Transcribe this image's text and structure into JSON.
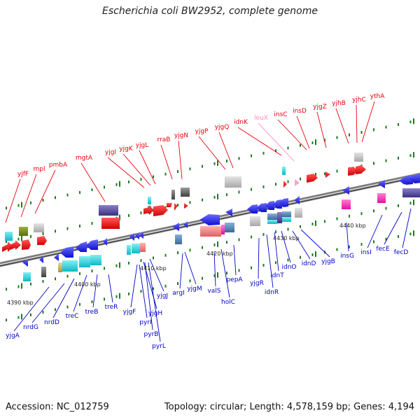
{
  "title": "Escherichia coli BW2952, complete genome",
  "footer": {
    "accession": "Accession: NC_012759",
    "summary": "Topology: circular; Length: 4,578,159 bp; Genes: 4,194"
  },
  "colors": {
    "forward_label": "#e8000b",
    "reverse_label": "#0000c8",
    "rna_label": "#ff88c0",
    "backbone": "#777777",
    "tick": "#1f7a1f"
  },
  "scale": [
    {
      "label": "4390 kbp"
    },
    {
      "label": "4400 kbp"
    },
    {
      "label": "4410 kbp"
    },
    {
      "label": "4420 kbp"
    },
    {
      "label": "4430 kbp"
    },
    {
      "label": "4440 kbp"
    }
  ],
  "genes_forward": [
    {
      "name": "yjfF"
    },
    {
      "name": "mpl"
    },
    {
      "name": "pmbA"
    },
    {
      "name": "mgtA"
    },
    {
      "name": "yjgI"
    },
    {
      "name": "yjgK"
    },
    {
      "name": "yjgL"
    },
    {
      "name": "rraB"
    },
    {
      "name": "yjgN"
    },
    {
      "name": "yjgP"
    },
    {
      "name": "yjgQ"
    },
    {
      "name": "idnK"
    },
    {
      "name": "leuX"
    },
    {
      "name": "insC"
    },
    {
      "name": "insD"
    },
    {
      "name": "yjgZ"
    },
    {
      "name": "yjhB"
    },
    {
      "name": "yjhC"
    },
    {
      "name": "ythA"
    }
  ],
  "genes_reverse": [
    {
      "name": "yjgA"
    },
    {
      "name": "nrdG"
    },
    {
      "name": "nrdD"
    },
    {
      "name": "treC"
    },
    {
      "name": "treB"
    },
    {
      "name": "treR"
    },
    {
      "name": "yjgF"
    },
    {
      "name": "pyrI"
    },
    {
      "name": "yjgH"
    },
    {
      "name": "pyrB"
    },
    {
      "name": "pyrL"
    },
    {
      "name": "yjgJ"
    },
    {
      "name": "argI"
    },
    {
      "name": "yjgM"
    },
    {
      "name": "valS"
    },
    {
      "name": "holC"
    },
    {
      "name": "pepA"
    },
    {
      "name": "yjgR"
    },
    {
      "name": "idnR"
    },
    {
      "name": "idnT"
    },
    {
      "name": "idnO"
    },
    {
      "name": "idnD"
    },
    {
      "name": "yjgB"
    },
    {
      "name": "insG"
    },
    {
      "name": "insI"
    },
    {
      "name": "fecE"
    },
    {
      "name": "fecD"
    }
  ]
}
